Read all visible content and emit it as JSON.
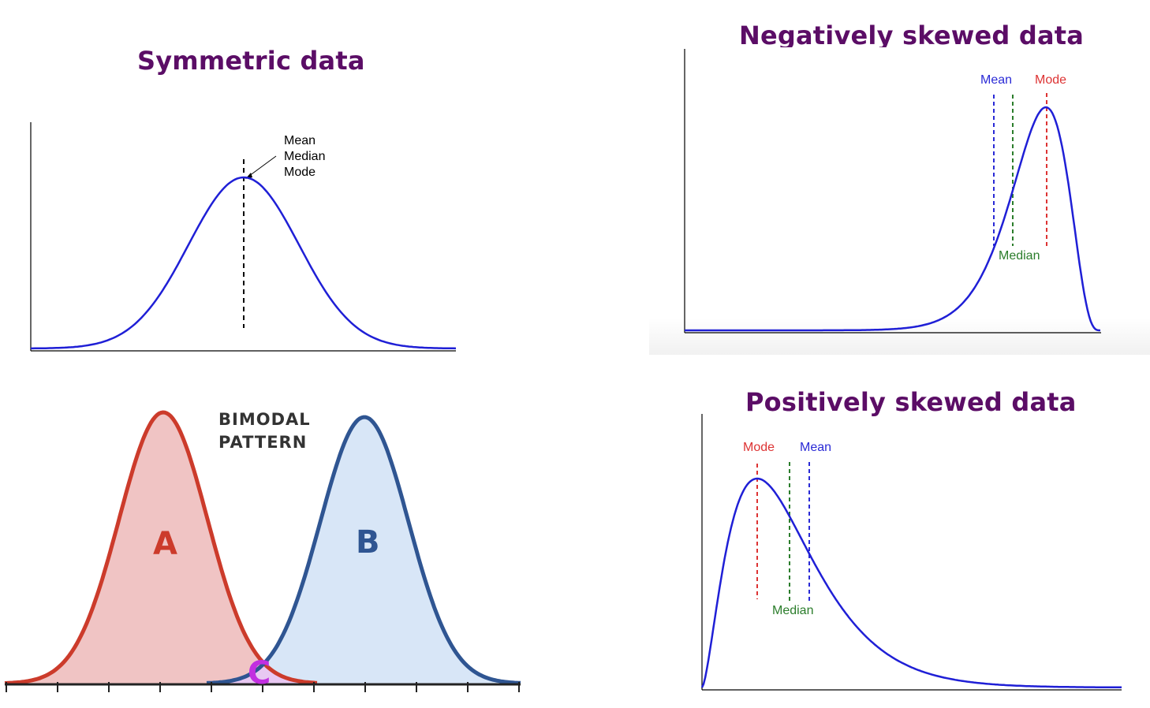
{
  "colors": {
    "title": "#5b0d66",
    "curve": "#1f1fd6",
    "mean": "#2a2ad6",
    "median": "#2b7d2b",
    "mode": "#dd3333",
    "bimodal_a_line": "#cc3b2b",
    "bimodal_a_fill": "#f0c4c4",
    "bimodal_b_line": "#2f5592",
    "bimodal_b_fill": "#d8e6f7",
    "bimodal_c": "#c22fe0"
  },
  "symmetric": {
    "title": "Symmetric data",
    "labels": [
      "Mean",
      "Median",
      "Mode"
    ]
  },
  "negative": {
    "title": "Negatively skewed data",
    "mean_label": "Mean",
    "mode_label": "Mode",
    "median_label": "Median"
  },
  "positive": {
    "title": "Positively skewed data",
    "mode_label": "Mode",
    "mean_label": "Mean",
    "median_label": "Median"
  },
  "bimodal": {
    "label_line1": "BIMODAL",
    "label_line2": "PATTERN",
    "a_label": "A",
    "b_label": "B",
    "c_label": "C"
  }
}
